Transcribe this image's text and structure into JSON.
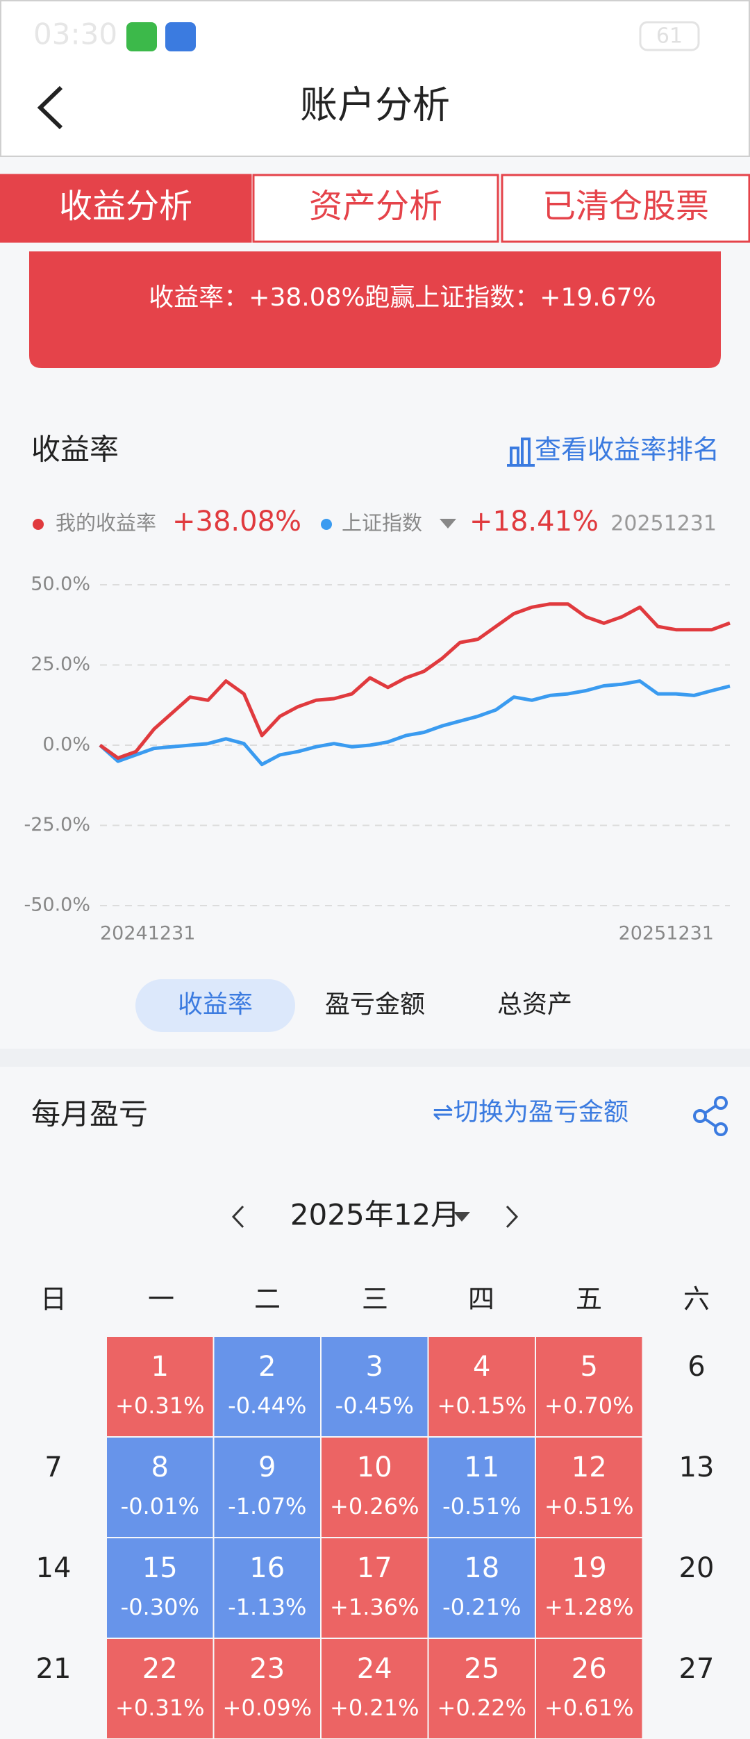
{
  "status_bar": {
    "time": "03:30",
    "battery": "61"
  },
  "header": {
    "title": "账户分析"
  },
  "tabs": [
    "收益分析",
    "资产分析",
    "已清仓股票"
  ],
  "summary_card": {
    "items": [
      "收益率：+38.08%",
      "跑赢上证指数：+19.67%"
    ]
  },
  "chart_section": {
    "title": "收益率",
    "link": "查看收益率排名",
    "legend_date": "20251231",
    "toggles": [
      "收益率",
      "盈亏金额",
      "总资产"
    ]
  },
  "chart_data": {
    "type": "line",
    "categories": [
      "20241231",
      null,
      null,
      null,
      null,
      null,
      null,
      null,
      null,
      null,
      null,
      null,
      null,
      null,
      null,
      null,
      null,
      null,
      null,
      null,
      null,
      null,
      null,
      null,
      null,
      null,
      null,
      null,
      null,
      null,
      null,
      null,
      null,
      null,
      null,
      "20251231"
    ],
    "series": [
      {
        "name": "我的收益率",
        "color": "#e03a3e",
        "legend_value": "+38.08%",
        "values": [
          0,
          -4,
          -2,
          5,
          10,
          15,
          14,
          20,
          16,
          3,
          9,
          12,
          14,
          14.5,
          16,
          21,
          18,
          21,
          23,
          27,
          32,
          33,
          37,
          41,
          43,
          44,
          44,
          40,
          38,
          40,
          43,
          37,
          36,
          36,
          36,
          38.08
        ]
      },
      {
        "name": "上证指数",
        "color": "#3a9bf0",
        "legend_value": "+18.41%",
        "values": [
          0,
          -5,
          -3,
          -1,
          -0.5,
          0,
          0.5,
          2,
          0.5,
          -6,
          -3,
          -2,
          -0.5,
          0.5,
          -0.5,
          0,
          1,
          3,
          4,
          6,
          7.5,
          9,
          11,
          15,
          14,
          15.5,
          16,
          17,
          18.5,
          19,
          20,
          16,
          16,
          15.5,
          17,
          18.41
        ]
      }
    ],
    "ylim": [
      -50,
      50
    ],
    "yticks": [
      {
        "value": -50,
        "label": "-50.0%"
      },
      {
        "value": -25,
        "label": "-25.0%"
      },
      {
        "value": 0,
        "label": "0.0%"
      },
      {
        "value": 25,
        "label": "25.0%"
      },
      {
        "value": 50,
        "label": "50.0%"
      }
    ],
    "grid": true
  },
  "monthly": {
    "title": "每月盈亏",
    "switch": "⇌切换为盈亏金额",
    "month": "2025年12月",
    "weekdays": [
      "日",
      "一",
      "二",
      "三",
      "四",
      "五",
      "六"
    ],
    "rows": [
      [
        null,
        {
          "day": "1",
          "change": "+0.31%"
        },
        {
          "day": "2",
          "change": "-0.44%"
        },
        {
          "day": "3",
          "change": "-0.45%"
        },
        {
          "day": "4",
          "change": "+0.15%"
        },
        {
          "day": "5",
          "change": "+0.70%"
        },
        {
          "day": "6"
        }
      ],
      [
        {
          "day": "7"
        },
        {
          "day": "8",
          "change": "-0.01%"
        },
        {
          "day": "9",
          "change": "-1.07%"
        },
        {
          "day": "10",
          "change": "+0.26%"
        },
        {
          "day": "11",
          "change": "-0.51%"
        },
        {
          "day": "12",
          "change": "+0.51%"
        },
        {
          "day": "13"
        }
      ],
      [
        {
          "day": "14"
        },
        {
          "day": "15",
          "change": "-0.30%"
        },
        {
          "day": "16",
          "change": "-1.13%"
        },
        {
          "day": "17",
          "change": "+1.36%"
        },
        {
          "day": "18",
          "change": "-0.21%"
        },
        {
          "day": "19",
          "change": "+1.28%"
        },
        {
          "day": "20"
        }
      ],
      [
        {
          "day": "21"
        },
        {
          "day": "22",
          "change": "+0.31%"
        },
        {
          "day": "23",
          "change": "+0.09%"
        },
        {
          "day": "24",
          "change": "+0.21%"
        },
        {
          "day": "25",
          "change": "+0.22%"
        },
        {
          "day": "26",
          "change": "+0.61%"
        },
        {
          "day": "27"
        }
      ]
    ]
  }
}
